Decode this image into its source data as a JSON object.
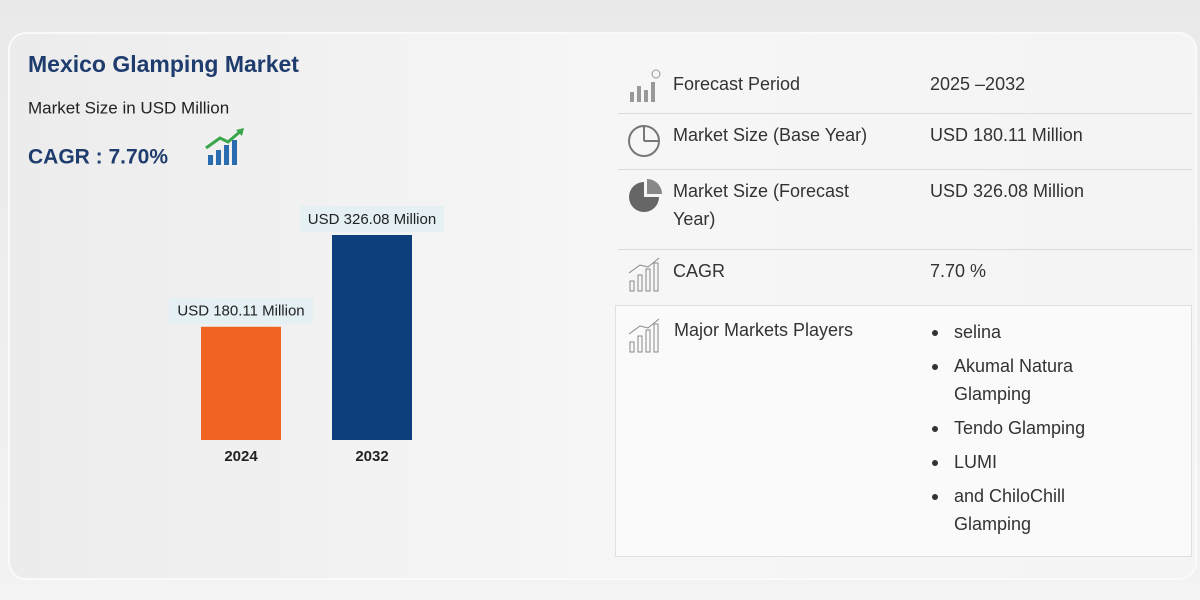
{
  "chart_data": {
    "type": "bar",
    "title": "Mexico Glamping Market",
    "subtitle": "Market Size in USD Million",
    "annotation": "CAGR : 7.70%",
    "categories": [
      "2024",
      "2032"
    ],
    "values": [
      180.11,
      326.08
    ],
    "value_labels": [
      "USD 180.11 Million",
      "USD 326.08 Million"
    ],
    "colors": [
      "#ef6420",
      "#0d3f7c"
    ]
  },
  "table": {
    "rows": [
      {
        "label": "Forecast Period",
        "value": "2025 –2032"
      },
      {
        "label": "Market Size (Base Year)",
        "value": "USD 180.11 Million"
      },
      {
        "label": "Market Size (Forecast Year)",
        "value": "USD 326.08 Million"
      },
      {
        "label": "CAGR",
        "value": "7.70 %"
      }
    ],
    "players": {
      "label": "Major Markets Players",
      "items": [
        "selina",
        "Akumal Natura Glamping",
        "Tendo Glamping",
        "LUMI",
        "and ChiloChill Glamping"
      ]
    }
  }
}
